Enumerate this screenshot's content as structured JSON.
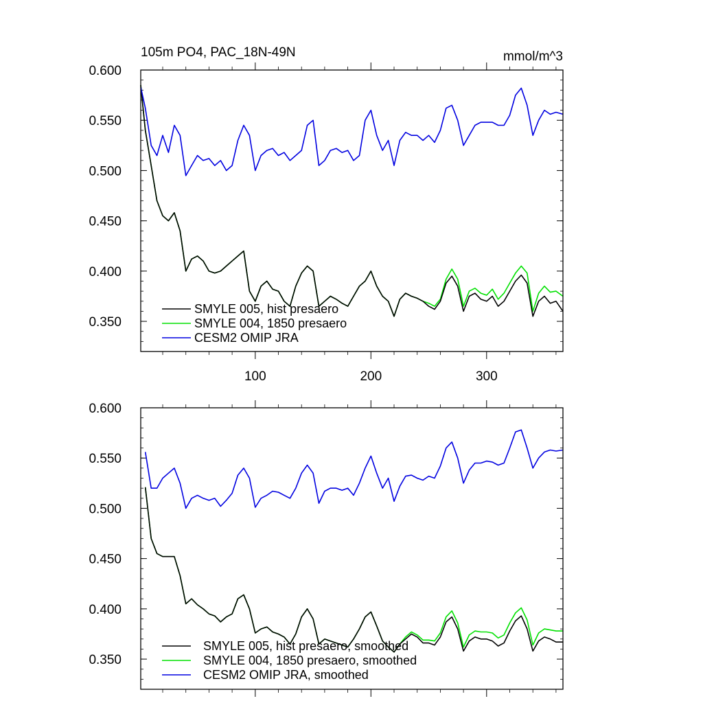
{
  "colors": {
    "series_black": "#000000",
    "series_green": "#00e000",
    "series_blue": "#0000e0"
  },
  "chart_data": [
    {
      "type": "line",
      "title": "105m PO4, PAC_18N-49N",
      "units": "mmol/m^3",
      "xlim": [
        1,
        366
      ],
      "ylim": [
        0.32,
        0.6
      ],
      "yticks": [
        "0.600",
        "0.550",
        "0.500",
        "0.450",
        "0.400",
        "0.350"
      ],
      "xticks": [
        "100",
        "200",
        "300"
      ],
      "legend_position": "bottom-left",
      "series": [
        {
          "name": "SMYLE 005, hist presaero",
          "color": "#000000",
          "x": [
            1,
            5,
            10,
            15,
            20,
            25,
            30,
            35,
            40,
            45,
            50,
            55,
            60,
            65,
            70,
            75,
            80,
            85,
            90,
            95,
            100,
            105,
            110,
            115,
            120,
            125,
            130,
            135,
            140,
            145,
            150,
            155,
            160,
            165,
            170,
            175,
            180,
            185,
            190,
            195,
            200,
            205,
            210,
            215,
            220,
            225,
            230,
            235,
            240,
            245,
            250,
            255,
            260,
            265,
            270,
            275,
            280,
            285,
            290,
            295,
            300,
            305,
            310,
            315,
            320,
            325,
            330,
            335,
            340,
            345,
            350,
            355,
            360,
            366
          ],
          "values": [
            0.585,
            0.54,
            0.505,
            0.47,
            0.455,
            0.45,
            0.458,
            0.44,
            0.4,
            0.412,
            0.415,
            0.41,
            0.4,
            0.398,
            0.4,
            0.405,
            0.41,
            0.415,
            0.42,
            0.38,
            0.37,
            0.385,
            0.39,
            0.382,
            0.38,
            0.37,
            0.365,
            0.385,
            0.398,
            0.405,
            0.4,
            0.365,
            0.37,
            0.375,
            0.372,
            0.368,
            0.365,
            0.375,
            0.385,
            0.39,
            0.4,
            0.385,
            0.375,
            0.37,
            0.355,
            0.372,
            0.378,
            0.375,
            0.373,
            0.37,
            0.365,
            0.362,
            0.37,
            0.388,
            0.395,
            0.385,
            0.36,
            0.375,
            0.378,
            0.372,
            0.37,
            0.375,
            0.365,
            0.37,
            0.38,
            0.39,
            0.396,
            0.388,
            0.355,
            0.37,
            0.375,
            0.368,
            0.37,
            0.36
          ]
        },
        {
          "name": "SMYLE 004, 1850 presaero",
          "color": "#00e000",
          "x": [
            1,
            5,
            10,
            15,
            20,
            25,
            30,
            35,
            40,
            45,
            50,
            55,
            60,
            65,
            70,
            75,
            80,
            85,
            90,
            95,
            100,
            105,
            110,
            115,
            120,
            125,
            130,
            135,
            140,
            145,
            150,
            155,
            160,
            165,
            170,
            175,
            180,
            185,
            190,
            195,
            200,
            205,
            210,
            215,
            220,
            225,
            230,
            235,
            240,
            245,
            250,
            255,
            260,
            265,
            270,
            275,
            280,
            285,
            290,
            295,
            300,
            305,
            310,
            315,
            320,
            325,
            330,
            335,
            340,
            345,
            350,
            355,
            360,
            366
          ],
          "values": [
            0.585,
            0.54,
            0.505,
            0.47,
            0.455,
            0.45,
            0.458,
            0.44,
            0.4,
            0.412,
            0.415,
            0.41,
            0.4,
            0.398,
            0.4,
            0.405,
            0.41,
            0.415,
            0.42,
            0.38,
            0.37,
            0.385,
            0.39,
            0.382,
            0.38,
            0.37,
            0.365,
            0.385,
            0.398,
            0.405,
            0.4,
            0.365,
            0.37,
            0.375,
            0.372,
            0.368,
            0.365,
            0.375,
            0.385,
            0.39,
            0.4,
            0.385,
            0.375,
            0.37,
            0.355,
            0.372,
            0.378,
            0.375,
            0.373,
            0.37,
            0.368,
            0.365,
            0.372,
            0.392,
            0.402,
            0.392,
            0.365,
            0.38,
            0.383,
            0.378,
            0.376,
            0.382,
            0.372,
            0.378,
            0.388,
            0.398,
            0.405,
            0.398,
            0.36,
            0.378,
            0.385,
            0.379,
            0.38,
            0.375
          ]
        },
        {
          "name": "CESM2 OMIP JRA",
          "color": "#0000e0",
          "x": [
            1,
            5,
            10,
            15,
            20,
            25,
            30,
            35,
            40,
            45,
            50,
            55,
            60,
            65,
            70,
            75,
            80,
            85,
            90,
            95,
            100,
            105,
            110,
            115,
            120,
            125,
            130,
            135,
            140,
            145,
            150,
            155,
            160,
            165,
            170,
            175,
            180,
            185,
            190,
            195,
            200,
            205,
            210,
            215,
            220,
            225,
            230,
            235,
            240,
            245,
            250,
            255,
            260,
            265,
            270,
            275,
            280,
            285,
            290,
            295,
            300,
            305,
            310,
            315,
            320,
            325,
            330,
            335,
            340,
            345,
            350,
            355,
            360,
            366
          ],
          "values": [
            0.583,
            0.562,
            0.525,
            0.515,
            0.535,
            0.518,
            0.545,
            0.535,
            0.495,
            0.505,
            0.515,
            0.51,
            0.512,
            0.505,
            0.51,
            0.5,
            0.505,
            0.53,
            0.545,
            0.535,
            0.5,
            0.515,
            0.52,
            0.522,
            0.515,
            0.518,
            0.51,
            0.515,
            0.52,
            0.545,
            0.55,
            0.505,
            0.51,
            0.52,
            0.522,
            0.518,
            0.52,
            0.51,
            0.515,
            0.55,
            0.56,
            0.535,
            0.52,
            0.53,
            0.505,
            0.53,
            0.538,
            0.535,
            0.535,
            0.53,
            0.535,
            0.528,
            0.54,
            0.562,
            0.565,
            0.55,
            0.525,
            0.535,
            0.545,
            0.548,
            0.548,
            0.548,
            0.545,
            0.545,
            0.555,
            0.575,
            0.582,
            0.565,
            0.535,
            0.55,
            0.56,
            0.556,
            0.558,
            0.556
          ]
        }
      ]
    },
    {
      "type": "line",
      "title": "",
      "xlim": [
        1,
        366
      ],
      "ylim": [
        0.32,
        0.6
      ],
      "yticks": [
        "0.600",
        "0.550",
        "0.500",
        "0.450",
        "0.400",
        "0.350"
      ],
      "legend_position": "bottom-left",
      "series": [
        {
          "name": "SMYLE 005, hist presaero, smoothed",
          "color": "#000000",
          "x": [
            5,
            10,
            15,
            20,
            25,
            30,
            35,
            40,
            45,
            50,
            55,
            60,
            65,
            70,
            75,
            80,
            85,
            90,
            95,
            100,
            105,
            110,
            115,
            120,
            125,
            130,
            135,
            140,
            145,
            150,
            155,
            160,
            165,
            170,
            175,
            180,
            185,
            190,
            195,
            200,
            205,
            210,
            215,
            220,
            225,
            230,
            235,
            240,
            245,
            250,
            255,
            260,
            265,
            270,
            275,
            280,
            285,
            290,
            295,
            300,
            305,
            310,
            315,
            320,
            325,
            330,
            335,
            340,
            345,
            350,
            355,
            360,
            366
          ],
          "values": [
            0.521,
            0.47,
            0.455,
            0.452,
            0.452,
            0.452,
            0.433,
            0.405,
            0.41,
            0.404,
            0.4,
            0.395,
            0.393,
            0.387,
            0.392,
            0.395,
            0.41,
            0.414,
            0.4,
            0.376,
            0.38,
            0.382,
            0.377,
            0.375,
            0.372,
            0.365,
            0.375,
            0.392,
            0.4,
            0.39,
            0.365,
            0.37,
            0.368,
            0.366,
            0.364,
            0.362,
            0.37,
            0.38,
            0.392,
            0.397,
            0.383,
            0.368,
            0.362,
            0.357,
            0.365,
            0.37,
            0.375,
            0.372,
            0.366,
            0.366,
            0.364,
            0.372,
            0.387,
            0.392,
            0.38,
            0.358,
            0.368,
            0.372,
            0.37,
            0.37,
            0.368,
            0.363,
            0.366,
            0.378,
            0.388,
            0.393,
            0.38,
            0.358,
            0.368,
            0.372,
            0.37,
            0.367,
            0.367
          ]
        },
        {
          "name": "SMYLE 004, 1850 presaero, smoothed",
          "color": "#00e000",
          "x": [
            5,
            10,
            15,
            20,
            25,
            30,
            35,
            40,
            45,
            50,
            55,
            60,
            65,
            70,
            75,
            80,
            85,
            90,
            95,
            100,
            105,
            110,
            115,
            120,
            125,
            130,
            135,
            140,
            145,
            150,
            155,
            160,
            165,
            170,
            175,
            180,
            185,
            190,
            195,
            200,
            205,
            210,
            215,
            220,
            225,
            230,
            235,
            240,
            245,
            250,
            255,
            260,
            265,
            270,
            275,
            280,
            285,
            290,
            295,
            300,
            305,
            310,
            315,
            320,
            325,
            330,
            335,
            340,
            345,
            350,
            355,
            360,
            366
          ],
          "values": [
            0.521,
            0.47,
            0.455,
            0.452,
            0.452,
            0.452,
            0.433,
            0.405,
            0.41,
            0.404,
            0.4,
            0.395,
            0.393,
            0.387,
            0.392,
            0.395,
            0.41,
            0.414,
            0.4,
            0.376,
            0.38,
            0.382,
            0.377,
            0.375,
            0.372,
            0.365,
            0.375,
            0.392,
            0.4,
            0.39,
            0.365,
            0.37,
            0.368,
            0.366,
            0.364,
            0.362,
            0.37,
            0.38,
            0.392,
            0.397,
            0.383,
            0.368,
            0.362,
            0.357,
            0.365,
            0.372,
            0.377,
            0.374,
            0.369,
            0.369,
            0.368,
            0.376,
            0.392,
            0.398,
            0.386,
            0.362,
            0.374,
            0.378,
            0.377,
            0.377,
            0.376,
            0.371,
            0.374,
            0.386,
            0.396,
            0.401,
            0.389,
            0.364,
            0.376,
            0.38,
            0.379,
            0.378,
            0.378
          ]
        },
        {
          "name": "CESM2 OMIP JRA, smoothed",
          "color": "#0000e0",
          "x": [
            5,
            10,
            15,
            20,
            25,
            30,
            35,
            40,
            45,
            50,
            55,
            60,
            65,
            70,
            75,
            80,
            85,
            90,
            95,
            100,
            105,
            110,
            115,
            120,
            125,
            130,
            135,
            140,
            145,
            150,
            155,
            160,
            165,
            170,
            175,
            180,
            185,
            190,
            195,
            200,
            205,
            210,
            215,
            220,
            225,
            230,
            235,
            240,
            245,
            250,
            255,
            260,
            265,
            270,
            275,
            280,
            285,
            290,
            295,
            300,
            305,
            310,
            315,
            320,
            325,
            330,
            335,
            340,
            345,
            350,
            355,
            360,
            366
          ],
          "values": [
            0.556,
            0.52,
            0.52,
            0.53,
            0.535,
            0.54,
            0.525,
            0.5,
            0.51,
            0.513,
            0.51,
            0.508,
            0.51,
            0.502,
            0.508,
            0.515,
            0.533,
            0.54,
            0.53,
            0.501,
            0.51,
            0.513,
            0.517,
            0.516,
            0.513,
            0.51,
            0.52,
            0.535,
            0.543,
            0.535,
            0.505,
            0.517,
            0.52,
            0.52,
            0.518,
            0.52,
            0.513,
            0.525,
            0.54,
            0.552,
            0.535,
            0.52,
            0.53,
            0.507,
            0.522,
            0.532,
            0.533,
            0.53,
            0.528,
            0.532,
            0.53,
            0.542,
            0.56,
            0.566,
            0.55,
            0.525,
            0.538,
            0.545,
            0.545,
            0.547,
            0.546,
            0.543,
            0.545,
            0.56,
            0.576,
            0.578,
            0.56,
            0.54,
            0.55,
            0.556,
            0.558,
            0.557,
            0.558
          ]
        }
      ]
    }
  ]
}
